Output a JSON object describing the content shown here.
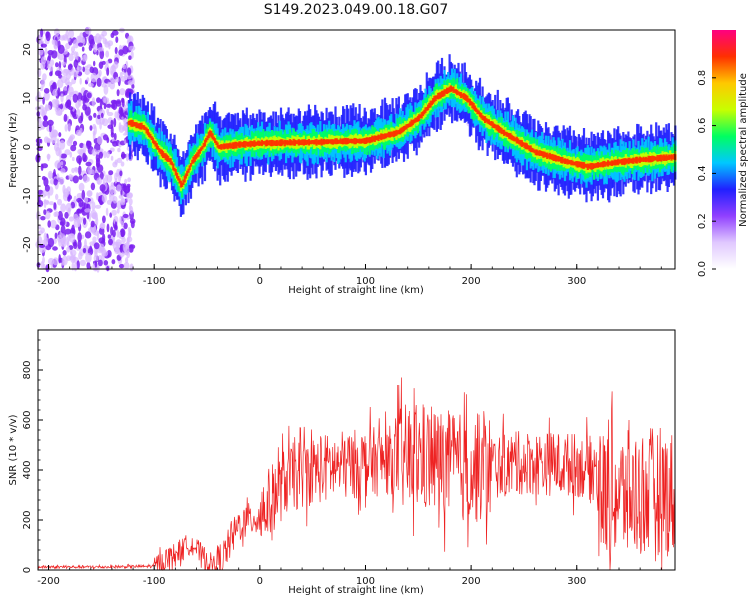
{
  "title": "S149.2023.049.00.18.G07",
  "chart_data": [
    {
      "type": "heatmap",
      "xlabel": "Height of straight line (km)",
      "ylabel": "Frequency (Hz)",
      "xlim": [
        -210,
        393
      ],
      "ylim": [
        -25,
        24
      ],
      "xticks": [
        -200,
        -100,
        0,
        100,
        200,
        300
      ],
      "yticks": [
        -20,
        -10,
        0,
        10,
        20
      ],
      "colorbar": {
        "label": "Normalized spectral amplitude",
        "range": [
          0,
          1
        ],
        "ticks": [
          "0.0",
          "0.2",
          "0.4",
          "0.6",
          "0.8"
        ],
        "colormap": [
          "#ffffff",
          "#e0c8ff",
          "#9040ff",
          "#2020ff",
          "#00c8ff",
          "#00ff60",
          "#c8ff00",
          "#ffc800",
          "#ff3000",
          "#ff0080"
        ]
      },
      "ridge": {
        "x": [
          -125,
          -110,
          -95,
          -85,
          -75,
          -65,
          -55,
          -48,
          -40,
          -20,
          0,
          50,
          100,
          130,
          150,
          165,
          180,
          195,
          210,
          230,
          260,
          290,
          310,
          340,
          393
        ],
        "y": [
          5,
          4,
          -1,
          -3,
          -8,
          -3,
          0,
          3,
          0,
          0.5,
          0.8,
          1,
          1.3,
          3,
          6,
          10,
          12,
          10,
          6,
          3,
          -1,
          -3,
          -4,
          -3,
          -2
        ]
      }
    },
    {
      "type": "line",
      "xlabel": "Height of straight line (km)",
      "ylabel": "SNR (10 * v/v)",
      "xlim": [
        -210,
        393
      ],
      "ylim": [
        0,
        960
      ],
      "xticks": [
        -200,
        -100,
        0,
        100,
        200,
        300
      ],
      "yticks": [
        0,
        200,
        400,
        600,
        800
      ],
      "line_color": "#ee2222",
      "series": [
        {
          "x": [
            -210,
            -150,
            -100,
            -90,
            -75,
            -65,
            -55,
            -45,
            -35,
            -20,
            0,
            25,
            50,
            100,
            150,
            200,
            250,
            300,
            320,
            325,
            350,
            380,
            393
          ],
          "y": [
            12,
            12,
            15,
            40,
            80,
            110,
            60,
            20,
            50,
            180,
            220,
            360,
            400,
            430,
            450,
            400,
            430,
            420,
            400,
            300,
            300,
            320,
            300
          ]
        }
      ]
    }
  ]
}
